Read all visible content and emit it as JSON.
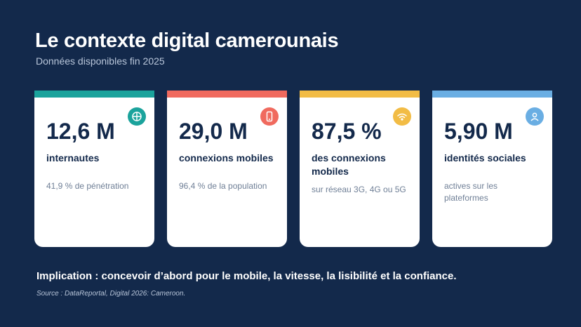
{
  "header": {
    "title": "Le contexte digital camerounais",
    "subtitle": "Données disponibles fin 2025"
  },
  "cards": [
    {
      "value": "12,6 M",
      "label": "internautes",
      "note": "41,9 % de pénétration",
      "accent": "#1ba39c",
      "icon": "globe-icon"
    },
    {
      "value": "29,0 M",
      "label": "connexions mobiles",
      "note": "96,4 % de la population",
      "accent": "#f06a5e",
      "icon": "smartphone-icon"
    },
    {
      "value": "87,5 %",
      "label": "des connexions mobiles",
      "note": "sur réseau 3G, 4G ou 5G",
      "accent": "#f2bc45",
      "icon": "wifi-icon"
    },
    {
      "value": "5,90 M",
      "label": "identités sociales",
      "note": "actives sur les plateformes",
      "accent": "#6aaee3",
      "icon": "user-icon"
    }
  ],
  "footer": {
    "implication": "Implication : concevoir d’abord pour le mobile, la vitesse, la lisibilité et la confiance.",
    "source": "Source : DataReportal, Digital 2026: Cameroon."
  }
}
